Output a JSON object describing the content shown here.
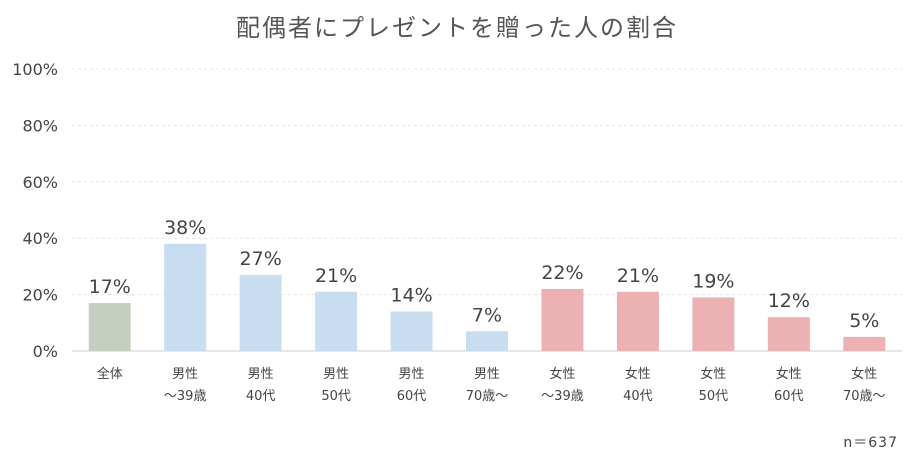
{
  "chart_data": {
    "type": "bar",
    "title": "配偶者にプレゼントを贈った人の割合",
    "xlabel": "",
    "ylabel": "",
    "ylim": [
      0,
      100
    ],
    "yticks": [
      "0%",
      "20%",
      "40%",
      "60%",
      "80%",
      "100%"
    ],
    "ytick_values": [
      0,
      20,
      40,
      60,
      80,
      100
    ],
    "grid": true,
    "legend": "none",
    "categories": [
      [
        "全体"
      ],
      [
        "男性",
        "～39歳"
      ],
      [
        "男性",
        "40代"
      ],
      [
        "男性",
        "50代"
      ],
      [
        "男性",
        "60代"
      ],
      [
        "男性",
        "70歳～"
      ],
      [
        "女性",
        "～39歳"
      ],
      [
        "女性",
        "40代"
      ],
      [
        "女性",
        "50代"
      ],
      [
        "女性",
        "60代"
      ],
      [
        "女性",
        "70歳～"
      ]
    ],
    "values": [
      17,
      38,
      27,
      21,
      14,
      7,
      22,
      21,
      19,
      12,
      5
    ],
    "data_labels": [
      "17%",
      "38%",
      "27%",
      "21%",
      "14%",
      "7%",
      "22%",
      "21%",
      "19%",
      "12%",
      "5%"
    ],
    "colors": {
      "total": "#c5cfbf",
      "male": "#c9ddf1",
      "female": "#ebb1b3",
      "grid": "#e4e4e4",
      "axis": "#cfcfcf"
    },
    "note": "n＝637"
  }
}
